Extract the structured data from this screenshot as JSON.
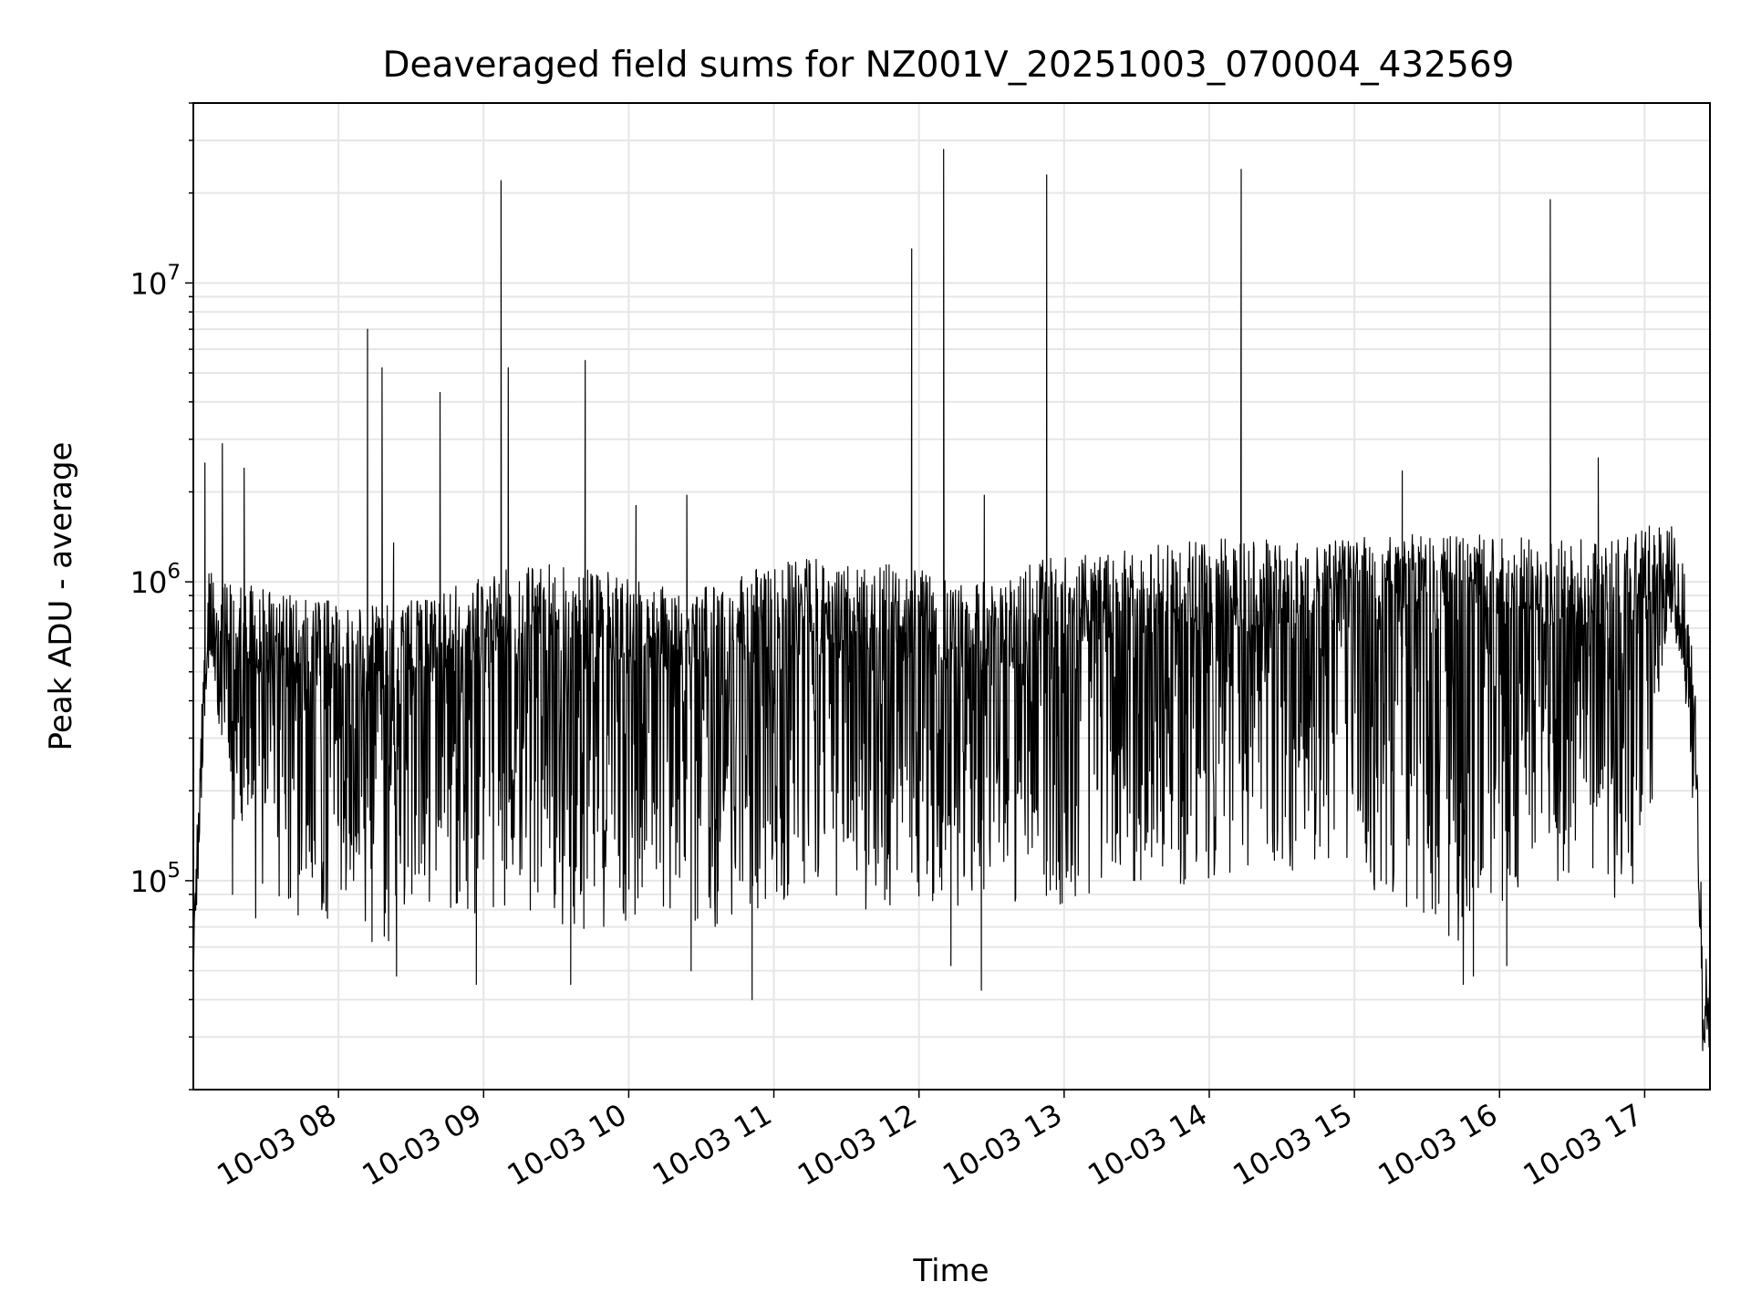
{
  "chart_data": {
    "type": "line",
    "title": "Deaveraged field sums for NZ001V_20251003_070004_432569",
    "xlabel": "Time",
    "ylabel": "Peak ADU - average",
    "yscale": "log",
    "ylim": [
      20000,
      40000000
    ],
    "xlim_hours": [
      7.0,
      17.45
    ],
    "grid": true,
    "line_color": "#000000",
    "grid_color": "#e6e6e6",
    "x_ticks": [
      {
        "hour": 8,
        "label": "10-03 08"
      },
      {
        "hour": 9,
        "label": "10-03 09"
      },
      {
        "hour": 10,
        "label": "10-03 10"
      },
      {
        "hour": 11,
        "label": "10-03 11"
      },
      {
        "hour": 12,
        "label": "10-03 12"
      },
      {
        "hour": 13,
        "label": "10-03 13"
      },
      {
        "hour": 14,
        "label": "10-03 14"
      },
      {
        "hour": 15,
        "label": "10-03 15"
      },
      {
        "hour": 16,
        "label": "10-03 16"
      },
      {
        "hour": 17,
        "label": "10-03 17"
      }
    ],
    "y_ticks": [
      {
        "value": 100000,
        "base": "10",
        "exp": "5"
      },
      {
        "value": 1000000,
        "base": "10",
        "exp": "6"
      },
      {
        "value": 10000000,
        "base": "10",
        "exp": "7"
      }
    ],
    "envelope": {
      "hours": [
        7.0,
        7.1,
        7.25,
        7.5,
        7.75,
        8.0,
        8.25,
        8.5,
        8.75,
        9.0,
        9.25,
        9.5,
        9.75,
        10.0,
        10.25,
        10.5,
        10.75,
        11.0,
        11.25,
        11.5,
        11.75,
        12.0,
        12.25,
        12.5,
        12.75,
        13.0,
        13.25,
        13.5,
        13.75,
        14.0,
        14.25,
        14.5,
        14.75,
        15.0,
        15.25,
        15.5,
        15.75,
        16.0,
        16.25,
        16.5,
        16.75,
        17.0,
        17.15,
        17.25,
        17.3,
        17.35,
        17.4,
        17.45
      ],
      "upper": [
        80000,
        1300000,
        1000000,
        950000,
        900000,
        850000,
        850000,
        900000,
        950000,
        1050000,
        1150000,
        1150000,
        1100000,
        1050000,
        1000000,
        950000,
        1050000,
        1200000,
        1200000,
        1150000,
        1150000,
        1100000,
        1000000,
        1000000,
        1200000,
        1200000,
        1250000,
        1300000,
        1350000,
        1400000,
        1400000,
        1400000,
        1400000,
        1400000,
        1450000,
        1450000,
        1450000,
        1450000,
        1400000,
        1400000,
        1400000,
        1500000,
        1700000,
        1400000,
        900000,
        500000,
        60000,
        50000
      ],
      "lower": [
        70000,
        500000,
        150000,
        90000,
        75000,
        70000,
        60000,
        60000,
        70000,
        80000,
        80000,
        70000,
        65000,
        70000,
        80000,
        65000,
        75000,
        80000,
        90000,
        80000,
        80000,
        75000,
        80000,
        90000,
        80000,
        80000,
        90000,
        95000,
        90000,
        100000,
        110000,
        110000,
        100000,
        95000,
        90000,
        70000,
        60000,
        80000,
        90000,
        85000,
        80000,
        100000,
        550000,
        500000,
        300000,
        100000,
        30000,
        40000
      ]
    },
    "spikes": [
      {
        "hour": 7.08,
        "value": 2500000
      },
      {
        "hour": 7.2,
        "value": 2900000
      },
      {
        "hour": 7.35,
        "value": 2400000
      },
      {
        "hour": 8.2,
        "value": 7000000
      },
      {
        "hour": 8.3,
        "value": 5200000
      },
      {
        "hour": 8.38,
        "value": 1350000
      },
      {
        "hour": 8.7,
        "value": 4300000
      },
      {
        "hour": 9.12,
        "value": 22000000
      },
      {
        "hour": 9.17,
        "value": 5200000
      },
      {
        "hour": 9.7,
        "value": 5500000
      },
      {
        "hour": 10.05,
        "value": 1800000
      },
      {
        "hour": 10.4,
        "value": 1950000
      },
      {
        "hour": 11.95,
        "value": 13000000
      },
      {
        "hour": 12.17,
        "value": 28000000
      },
      {
        "hour": 12.45,
        "value": 1950000
      },
      {
        "hour": 12.88,
        "value": 23000000
      },
      {
        "hour": 14.22,
        "value": 24000000
      },
      {
        "hour": 15.33,
        "value": 2350000
      },
      {
        "hour": 16.35,
        "value": 19000000
      },
      {
        "hour": 16.68,
        "value": 2600000
      }
    ],
    "dips": [
      {
        "hour": 7.27,
        "value": 90000
      },
      {
        "hour": 7.43,
        "value": 75000
      },
      {
        "hour": 8.4,
        "value": 48000
      },
      {
        "hour": 8.95,
        "value": 45000
      },
      {
        "hour": 9.6,
        "value": 45000
      },
      {
        "hour": 10.43,
        "value": 50000
      },
      {
        "hour": 10.85,
        "value": 40000
      },
      {
        "hour": 12.22,
        "value": 52000
      },
      {
        "hour": 12.43,
        "value": 43000
      },
      {
        "hour": 15.75,
        "value": 45000
      },
      {
        "hour": 15.82,
        "value": 48000
      },
      {
        "hour": 16.05,
        "value": 52000
      },
      {
        "hour": 17.4,
        "value": 27000
      }
    ]
  }
}
